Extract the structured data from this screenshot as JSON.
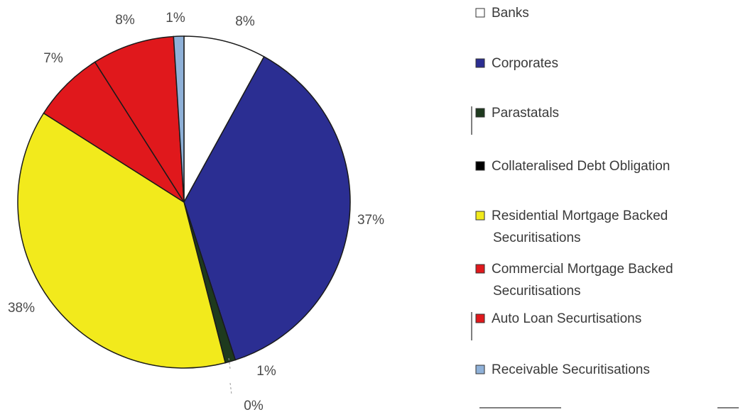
{
  "chart_data": {
    "type": "pie",
    "start_angle_deg": 0,
    "direction": "clockwise",
    "slices": [
      {
        "label": "Banks",
        "value": 8,
        "display": "8%",
        "color": "#ffffff"
      },
      {
        "label": "Corporates",
        "value": 37,
        "display": "37%",
        "color": "#2b2e92"
      },
      {
        "label": "Parastatals",
        "value": 1,
        "display": "1%",
        "color": "#1e3a1e"
      },
      {
        "label": "Collateralised Debt Obligation",
        "value": 0,
        "display": "0%",
        "color": "#000000"
      },
      {
        "label": "Residential Mortgage Backed Securitisations",
        "value": 38,
        "display": "38%",
        "color": "#f2ea1c"
      },
      {
        "label": "Commercial Mortgage Backed Securitisations",
        "value": 7,
        "display": "7%",
        "color": "#e0181c"
      },
      {
        "label": "Auto Loan Securtisations",
        "value": 8,
        "display": "8%",
        "color": "#e0181c"
      },
      {
        "label": "Receivable Securitisations",
        "value": 1,
        "display": "1%",
        "color": "#8fb1d8"
      }
    ],
    "legend": {
      "placement": "right",
      "entries": [
        {
          "lines": [
            "Banks"
          ],
          "color": "#ffffff"
        },
        {
          "lines": [
            "Corporates"
          ],
          "color": "#2b2e92"
        },
        {
          "lines": [
            "Parastatals"
          ],
          "color": "#1e3a1e"
        },
        {
          "lines": [
            "Collateralised Debt Obligation"
          ],
          "color": "#000000"
        },
        {
          "lines": [
            "Residential Mortgage Backed",
            "Securitisations"
          ],
          "color": "#f2ea1c"
        },
        {
          "lines": [
            "Commercial Mortgage Backed",
            "Securitisations"
          ],
          "color": "#e0181c"
        },
        {
          "lines": [
            "Auto Loan Securtisations"
          ],
          "color": "#e0181c"
        },
        {
          "lines": [
            "Receivable Securitisations"
          ],
          "color": "#8fb1d8"
        }
      ]
    }
  }
}
